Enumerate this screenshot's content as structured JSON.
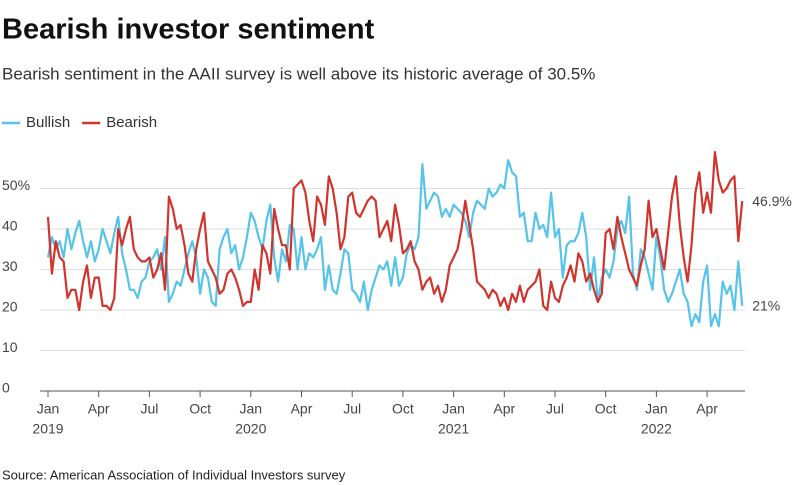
{
  "chart_data": {
    "type": "line",
    "title": "Bearish investor sentiment",
    "subtitle": "Bearish sentiment in the AAII survey is well above its historic average of 30.5%",
    "source": "Source: American Association of Individual Investors survey",
    "categories": [
      "Jan",
      null,
      null,
      null,
      null,
      null,
      null,
      null,
      null,
      null,
      null,
      null,
      null,
      "Apr",
      null,
      null,
      null,
      null,
      null,
      null,
      null,
      null,
      null,
      null,
      null,
      null,
      "Jul",
      null,
      null,
      null,
      null,
      null,
      null,
      null,
      null,
      null,
      null,
      null,
      null,
      "Oct",
      null,
      null,
      null,
      null,
      null,
      null,
      null,
      null,
      null,
      null,
      null,
      null,
      "Jan",
      null,
      null,
      null,
      null,
      null,
      null,
      null,
      null,
      null,
      null,
      null,
      null,
      "Apr",
      null,
      null,
      null,
      null,
      null,
      null,
      null,
      null,
      null,
      null,
      null,
      null,
      "Jul",
      null,
      null,
      null,
      null,
      null,
      null,
      null,
      null,
      null,
      null,
      null,
      null,
      "Oct",
      null,
      null,
      null,
      null,
      null,
      null,
      null,
      null,
      null,
      null,
      null,
      null,
      "Jan",
      null,
      null,
      null,
      null,
      null,
      null,
      null,
      null,
      null,
      null,
      null,
      null,
      "Apr",
      null,
      null,
      null,
      null,
      null,
      null,
      null,
      null,
      null,
      null,
      null,
      null,
      "Jul",
      null,
      null,
      null,
      null,
      null,
      null,
      null,
      null,
      null,
      null,
      null,
      null,
      "Oct",
      null,
      null,
      null,
      null,
      null,
      null,
      null,
      null,
      null,
      null,
      null,
      null,
      "Jan",
      null,
      null,
      null,
      null,
      null,
      null,
      null,
      null,
      null,
      null,
      null,
      null,
      "Apr",
      null,
      null,
      null,
      null,
      null,
      null,
      null,
      null,
      null
    ],
    "years": [
      "2019",
      "2020",
      "2021",
      "2022"
    ],
    "series": [
      {
        "name": "Bullish",
        "color": "#55c3ea",
        "values": [
          33,
          38,
          35,
          37,
          33,
          40,
          35,
          39,
          42,
          37,
          33,
          37,
          32,
          35,
          40,
          37,
          34,
          39,
          43,
          34,
          30,
          25,
          25,
          23,
          27,
          28,
          32,
          33,
          35,
          30,
          38,
          22,
          24,
          27,
          26,
          30,
          34,
          37,
          33,
          24,
          30,
          28,
          22,
          21,
          35,
          38,
          40,
          34,
          36,
          30,
          33,
          38,
          44,
          42,
          38,
          35,
          42,
          46,
          33,
          27,
          35,
          32,
          41,
          40,
          30,
          38,
          30,
          34,
          33,
          35,
          38,
          25,
          31,
          25,
          24,
          29,
          35,
          34,
          25,
          24,
          22,
          27,
          20,
          25,
          28,
          31,
          30,
          32,
          26,
          33,
          26,
          28,
          34,
          36,
          35,
          38,
          56,
          45,
          47,
          49,
          48,
          43,
          45,
          43,
          46,
          45,
          44,
          42,
          38,
          44,
          47,
          46,
          45,
          50,
          48,
          49,
          51,
          50,
          57,
          54,
          53,
          43,
          44,
          37,
          37,
          44,
          40,
          41,
          38,
          49,
          38,
          40,
          28,
          36,
          37,
          37,
          39,
          44,
          38,
          25,
          33,
          22,
          28,
          30,
          28,
          32,
          40,
          42,
          39,
          48,
          29,
          25,
          35,
          33,
          29,
          25,
          38,
          33,
          25,
          22,
          24,
          27,
          30,
          24,
          22,
          16,
          19,
          17,
          27,
          31,
          16,
          19,
          16,
          27,
          24,
          26,
          20,
          32,
          21
        ],
        "value_labels": [
          null,
          null,
          null,
          null,
          null,
          null,
          null,
          null,
          null,
          null,
          null,
          null,
          null,
          null,
          null,
          null,
          null,
          null,
          null,
          null,
          null,
          null,
          null,
          null,
          null,
          null,
          null,
          null,
          null,
          null,
          null,
          null,
          null,
          null,
          null,
          null,
          null,
          null,
          null,
          null,
          null,
          null,
          null,
          null,
          null,
          null,
          null,
          null,
          null,
          null,
          null,
          null,
          null,
          null,
          null,
          null,
          null,
          null,
          null,
          null,
          null,
          null,
          null,
          null,
          null,
          null,
          null,
          null,
          null,
          null,
          null,
          null,
          null,
          null,
          null,
          null,
          null,
          null,
          null,
          null,
          null,
          null,
          null,
          null,
          null,
          null,
          null,
          null,
          null,
          null,
          null,
          null,
          null,
          null,
          null,
          null,
          null,
          null,
          null,
          null,
          null,
          null,
          null,
          null,
          null,
          null,
          null,
          null,
          null,
          null,
          null,
          null,
          null,
          null,
          null,
          null,
          null,
          null,
          null,
          null,
          null,
          null,
          null,
          null,
          null,
          null,
          null,
          null,
          null,
          null,
          null,
          null,
          null,
          null,
          null,
          null,
          null,
          null,
          null,
          null,
          null,
          null,
          null,
          null,
          null,
          null,
          null,
          null,
          null,
          null,
          null,
          null,
          null,
          null,
          null,
          null,
          null,
          null,
          null,
          null,
          null,
          null,
          null,
          null,
          null,
          null,
          null,
          null,
          null,
          null,
          null,
          null,
          null,
          null,
          null,
          null,
          null,
          null,
          "21%"
        ]
      },
      {
        "name": "Bearish",
        "color": "#d0342c",
        "values": [
          43,
          29,
          37,
          33,
          32,
          23,
          25,
          25,
          20,
          27,
          31,
          23,
          28,
          28,
          21,
          21,
          20,
          23,
          40,
          36,
          40,
          43,
          35,
          33,
          32,
          32,
          33,
          28,
          30,
          34,
          25,
          48,
          45,
          40,
          41,
          36,
          29,
          27,
          35,
          40,
          44,
          32,
          30,
          28,
          24,
          25,
          29,
          30,
          28,
          25,
          21,
          22,
          22,
          30,
          25,
          36,
          34,
          29,
          45,
          40,
          36,
          36,
          30,
          50,
          51,
          52,
          49,
          42,
          37,
          48,
          46,
          41,
          53,
          50,
          44,
          35,
          38,
          48,
          49,
          44,
          43,
          45,
          47,
          48,
          47,
          38,
          40,
          42,
          37,
          46,
          41,
          34,
          35,
          37,
          32,
          30,
          25,
          27,
          28,
          24,
          26,
          22,
          25,
          31,
          33,
          35,
          40,
          47,
          41,
          35,
          27,
          26,
          25,
          23,
          25,
          24,
          21,
          23,
          20,
          24,
          22,
          26,
          22,
          25,
          26,
          27,
          30,
          21,
          20,
          27,
          23,
          22,
          26,
          28,
          31,
          27,
          34,
          32,
          27,
          29,
          25,
          22,
          24,
          39,
          40,
          35,
          43,
          38,
          34,
          30,
          28,
          26,
          31,
          35,
          47,
          38,
          40,
          35,
          30,
          39,
          48,
          53,
          41,
          33,
          27,
          36,
          49,
          54,
          44,
          49,
          44,
          59,
          52,
          49,
          50,
          52,
          53,
          37,
          46.9
        ],
        "value_labels": [
          null,
          null,
          null,
          null,
          null,
          null,
          null,
          null,
          null,
          null,
          null,
          null,
          null,
          null,
          null,
          null,
          null,
          null,
          null,
          null,
          null,
          null,
          null,
          null,
          null,
          null,
          null,
          null,
          null,
          null,
          null,
          null,
          null,
          null,
          null,
          null,
          null,
          null,
          null,
          null,
          null,
          null,
          null,
          null,
          null,
          null,
          null,
          null,
          null,
          null,
          null,
          null,
          null,
          null,
          null,
          null,
          null,
          null,
          null,
          null,
          null,
          null,
          null,
          null,
          null,
          null,
          null,
          null,
          null,
          null,
          null,
          null,
          null,
          null,
          null,
          null,
          null,
          null,
          null,
          null,
          null,
          null,
          null,
          null,
          null,
          null,
          null,
          null,
          null,
          null,
          null,
          null,
          null,
          null,
          null,
          null,
          null,
          null,
          null,
          null,
          null,
          null,
          null,
          null,
          null,
          null,
          null,
          null,
          null,
          null,
          null,
          null,
          null,
          null,
          null,
          null,
          null,
          null,
          null,
          null,
          null,
          null,
          null,
          null,
          null,
          null,
          null,
          null,
          null,
          null,
          null,
          null,
          null,
          null,
          null,
          null,
          null,
          null,
          null,
          null,
          null,
          null,
          null,
          null,
          null,
          null,
          null,
          null,
          null,
          null,
          null,
          null,
          null,
          null,
          null,
          null,
          null,
          null,
          null,
          null,
          null,
          null,
          null,
          null,
          null,
          null,
          null,
          null,
          null,
          null,
          null,
          null,
          null,
          null,
          null,
          null,
          null,
          null,
          "46.9%"
        ]
      }
    ],
    "ylim": [
      0,
      60
    ],
    "yticks": [
      0,
      10,
      20,
      30,
      {
        "value": 40,
        "label": "40"
      },
      {
        "value": 50,
        "label": "50%"
      }
    ],
    "grid": true,
    "legend": "top-left"
  }
}
